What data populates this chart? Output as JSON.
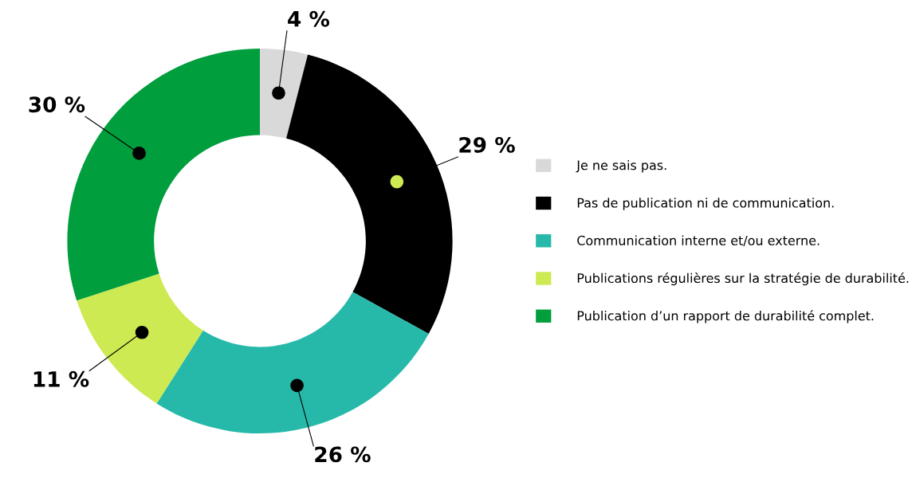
{
  "chart_data": {
    "type": "donut",
    "categories": [
      "Je ne sais pas.",
      "Pas de publication ni de communication.",
      "Communication interne et/ou externe.",
      "Publications régulières sur la stratégie de durabilité.",
      "Publication d’un rapport de durabilité complet."
    ],
    "values": [
      4,
      29,
      26,
      11,
      30
    ],
    "colors": [
      "#d9d9d9",
      "#000000",
      "#26b9a9",
      "#cdea52",
      "#009e3d"
    ],
    "value_labels": [
      "4 %",
      "29 %",
      "26 %",
      "11 %",
      "30 %"
    ],
    "legend": "right"
  }
}
